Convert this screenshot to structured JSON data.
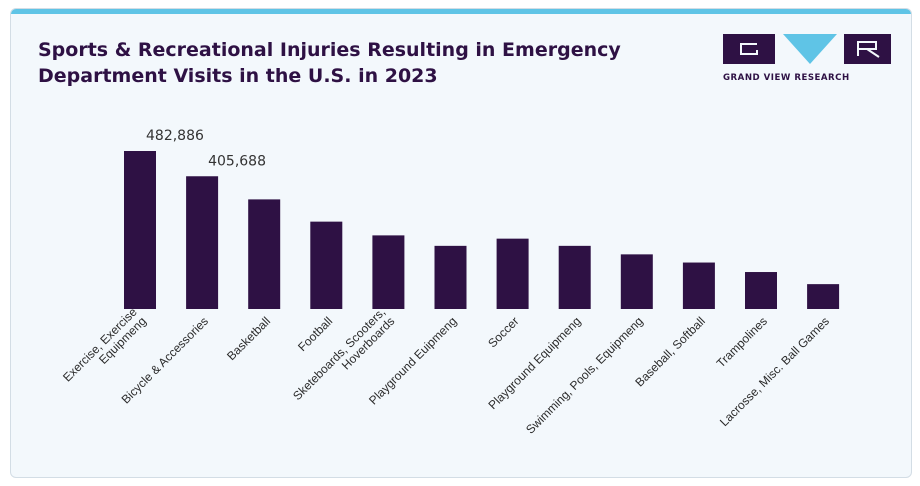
{
  "title": "Sports & Recreational Injuries Resulting in Emergency Department Visits in the U.S. in 2023",
  "logo": {
    "text": "GRAND VIEW RESEARCH"
  },
  "colors": {
    "bar": "#2e1144",
    "accent": "#5fc4e6",
    "background": "#f3f8fc"
  },
  "chart_data": {
    "type": "bar",
    "title": "Sports & Recreational Injuries Resulting in Emergency Department Visits in the U.S. in 2023",
    "xlabel": "",
    "ylabel": "",
    "ylim": [
      0,
      500000
    ],
    "grid": false,
    "categories": [
      [
        "Exercise, Exercise",
        "Equipmeng"
      ],
      [
        "Bicycle & Accessories"
      ],
      [
        "Basketball"
      ],
      [
        "Football"
      ],
      [
        "Sketeboards, Scooters,",
        "Hoverboards"
      ],
      [
        "Playground Euipmeng"
      ],
      [
        "Soccer"
      ],
      [
        "Playground Equipmeng"
      ],
      [
        "Swimming, Pools, Equipmeng"
      ],
      [
        "Baseball, Softball"
      ],
      [
        "Trampolines"
      ],
      [
        "Lacrosse, Misc. Ball Games"
      ]
    ],
    "values": [
      482886,
      405688,
      335000,
      267000,
      225000,
      193000,
      215000,
      193000,
      167000,
      142000,
      113000,
      76000
    ],
    "data_labels": [
      "482,886",
      "405,688",
      "",
      "",
      "",
      "",
      "",
      "",
      "",
      "",
      "",
      ""
    ]
  }
}
